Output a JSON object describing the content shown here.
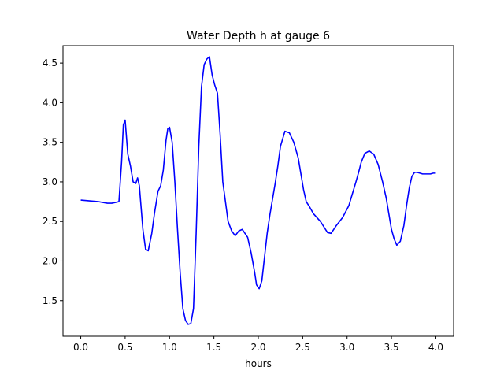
{
  "chart_data": {
    "type": "line",
    "title": "Water Depth h at gauge 6",
    "xlabel": "hours",
    "ylabel": "",
    "xlim": [
      -0.2,
      4.2
    ],
    "ylim": [
      1.05,
      4.72
    ],
    "xticks": [
      0.0,
      0.5,
      1.0,
      1.5,
      2.0,
      2.5,
      3.0,
      3.5,
      4.0
    ],
    "xtick_labels": [
      "0.0",
      "0.5",
      "1.0",
      "1.5",
      "2.0",
      "2.5",
      "3.0",
      "3.5",
      "4.0"
    ],
    "yticks": [
      1.5,
      2.0,
      2.5,
      3.0,
      3.5,
      4.0,
      4.5
    ],
    "ytick_labels": [
      "1.5",
      "2.0",
      "2.5",
      "3.0",
      "3.5",
      "4.0",
      "4.5"
    ],
    "grid": false,
    "line_color": "#0000ff",
    "series": [
      {
        "x": [
          0.0,
          0.1,
          0.2,
          0.3,
          0.35,
          0.43,
          0.46,
          0.48,
          0.5,
          0.53,
          0.56,
          0.59,
          0.62,
          0.64,
          0.66,
          0.7,
          0.73,
          0.76,
          0.8,
          0.83,
          0.87,
          0.9,
          0.93,
          0.96,
          0.98,
          1.0,
          1.03,
          1.06,
          1.09,
          1.12,
          1.15,
          1.18,
          1.21,
          1.24,
          1.27,
          1.3,
          1.33,
          1.36,
          1.39,
          1.42,
          1.45,
          1.48,
          1.51,
          1.54,
          1.57,
          1.6,
          1.63,
          1.66,
          1.7,
          1.74,
          1.78,
          1.82,
          1.85,
          1.88,
          1.92,
          1.96,
          1.98,
          2.01,
          2.04,
          2.07,
          2.1,
          2.13,
          2.16,
          2.19,
          2.22,
          2.25,
          2.3,
          2.35,
          2.4,
          2.45,
          2.48,
          2.51,
          2.54,
          2.58,
          2.62,
          2.66,
          2.7,
          2.74,
          2.78,
          2.82,
          2.88,
          2.95,
          3.02,
          3.06,
          3.1,
          3.13,
          3.16,
          3.2,
          3.25,
          3.3,
          3.35,
          3.4,
          3.44,
          3.47,
          3.5,
          3.53,
          3.56,
          3.6,
          3.64,
          3.67,
          3.7,
          3.73,
          3.76,
          3.79,
          3.82,
          3.85,
          3.88,
          3.91,
          3.94,
          3.97,
          4.0
        ],
        "y": [
          2.77,
          2.76,
          2.75,
          2.73,
          2.73,
          2.75,
          3.25,
          3.72,
          3.78,
          3.35,
          3.2,
          3.0,
          2.98,
          3.05,
          2.95,
          2.4,
          2.15,
          2.13,
          2.35,
          2.6,
          2.88,
          2.95,
          3.15,
          3.52,
          3.67,
          3.69,
          3.5,
          3.0,
          2.4,
          1.85,
          1.4,
          1.25,
          1.2,
          1.21,
          1.4,
          2.35,
          3.45,
          4.2,
          4.48,
          4.55,
          4.58,
          4.35,
          4.22,
          4.12,
          3.6,
          3.0,
          2.75,
          2.5,
          2.38,
          2.32,
          2.38,
          2.4,
          2.35,
          2.3,
          2.1,
          1.85,
          1.7,
          1.65,
          1.75,
          2.05,
          2.35,
          2.58,
          2.78,
          2.98,
          3.2,
          3.45,
          3.64,
          3.62,
          3.5,
          3.3,
          3.1,
          2.9,
          2.75,
          2.68,
          2.6,
          2.55,
          2.5,
          2.43,
          2.36,
          2.35,
          2.45,
          2.55,
          2.7,
          2.85,
          3.0,
          3.12,
          3.25,
          3.36,
          3.39,
          3.35,
          3.22,
          3.0,
          2.8,
          2.6,
          2.4,
          2.28,
          2.2,
          2.25,
          2.45,
          2.7,
          2.92,
          3.07,
          3.12,
          3.12,
          3.11,
          3.1,
          3.1,
          3.1,
          3.1,
          3.11,
          3.11
        ]
      }
    ]
  }
}
